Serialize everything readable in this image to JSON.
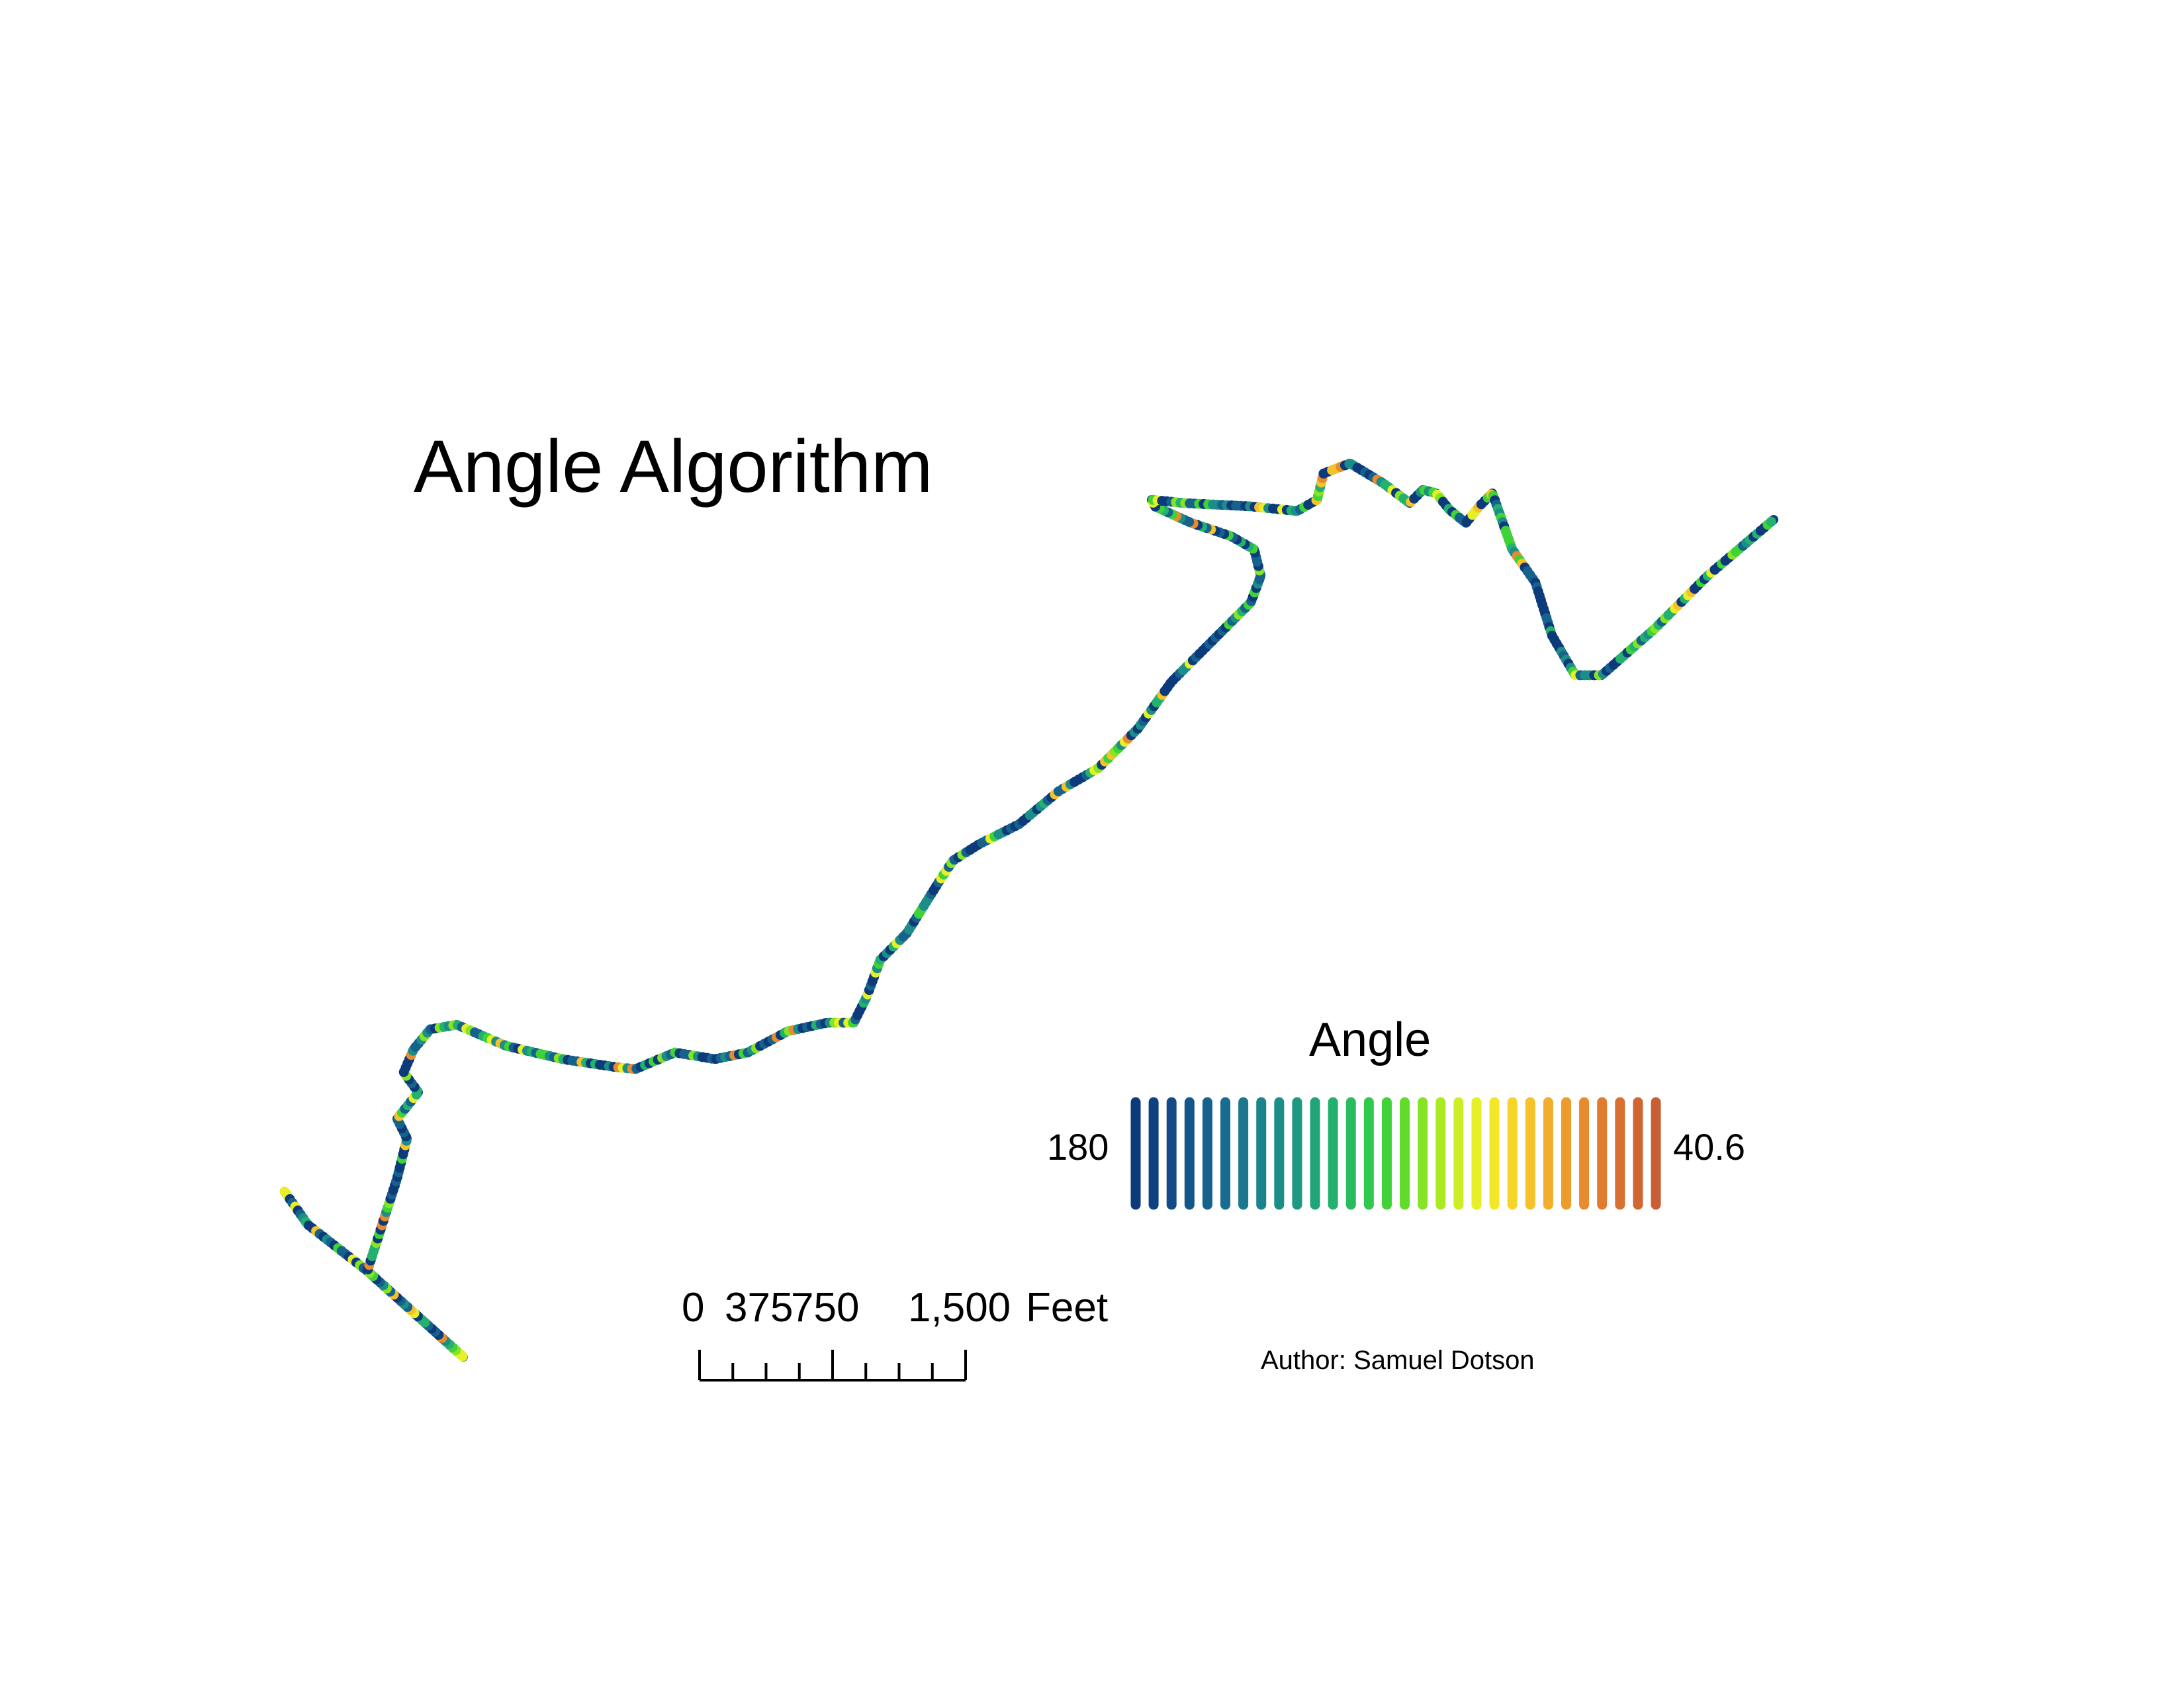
{
  "title": "Angle Algorithm",
  "legend": {
    "title": "Angle",
    "min_label": "180",
    "max_label": "40.6",
    "min_value": 180,
    "max_value": 40.6,
    "ramp_colors": [
      "#0c3a7a",
      "#0f4180",
      "#124b85",
      "#155689",
      "#17618d",
      "#186c8f",
      "#1a778e",
      "#1c828c",
      "#1d8d88",
      "#1f9882",
      "#21a47a",
      "#24b06e",
      "#28bc5f",
      "#2fc94d",
      "#40d338",
      "#62dc2a",
      "#86e424",
      "#aaea22",
      "#cbee24",
      "#e6ef28",
      "#f3e72a",
      "#f6d52a",
      "#f5c22a",
      "#f2ae2b",
      "#ee9b2c",
      "#e88a2e",
      "#e07c30",
      "#d87032",
      "#cf6634",
      "#c75e36"
    ]
  },
  "scale_bar": {
    "labels": [
      "0",
      "375",
      "750",
      "1,500"
    ],
    "unit": "Feet"
  },
  "author": "Author: Samuel Dotson",
  "route": {
    "base_color": "#0c3a7a",
    "palette": [
      "#0c3a7a",
      "#17618d",
      "#1d8d88",
      "#24b06e",
      "#40d338",
      "#86e424",
      "#e6ef28",
      "#f5c22a",
      "#e88a2e"
    ]
  }
}
